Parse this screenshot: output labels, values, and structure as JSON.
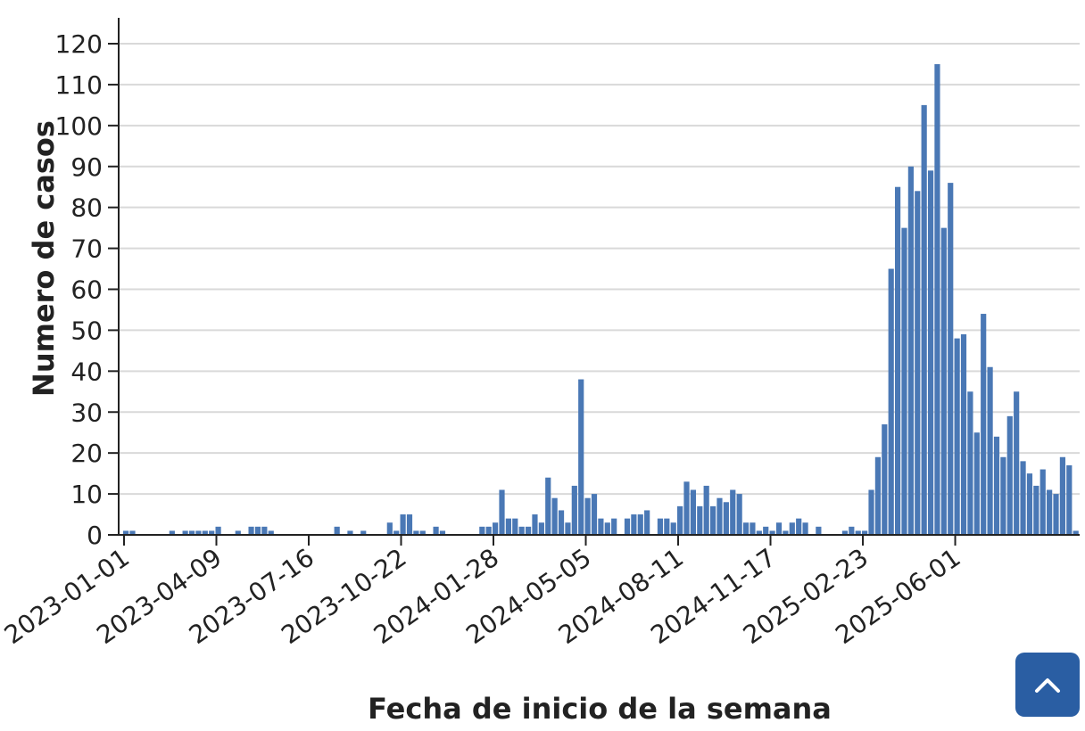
{
  "chart_data": {
    "type": "bar",
    "xlabel": "Fecha de inicio de la semana",
    "ylabel": "Numero de casos",
    "ylim": [
      0,
      120
    ],
    "yticks": [
      0,
      10,
      20,
      30,
      40,
      50,
      60,
      70,
      80,
      90,
      100,
      110,
      120
    ],
    "xticks": [
      "2023-01-01",
      "2023-04-09",
      "2023-07-16",
      "2023-10-22",
      "2024-01-28",
      "2024-05-05",
      "2024-08-11",
      "2024-11-17",
      "2025-02-23",
      "2025-06-01"
    ],
    "grid": true,
    "bar_color": "#4a78b5",
    "x_start": "2023-01-01",
    "x_interval": "weekly",
    "values": [
      1,
      1,
      0,
      0,
      0,
      0,
      0,
      1,
      0,
      1,
      1,
      1,
      1,
      1,
      2,
      0,
      0,
      1,
      0,
      2,
      2,
      2,
      1,
      0,
      0,
      0,
      0,
      0,
      0,
      0,
      0,
      0,
      2,
      0,
      1,
      0,
      1,
      0,
      0,
      0,
      3,
      1,
      5,
      5,
      1,
      1,
      0,
      2,
      1,
      0,
      0,
      0,
      0,
      0,
      2,
      2,
      3,
      11,
      4,
      4,
      2,
      2,
      5,
      3,
      14,
      9,
      6,
      3,
      12,
      38,
      9,
      10,
      4,
      3,
      4,
      0,
      4,
      5,
      5,
      6,
      0,
      4,
      4,
      3,
      7,
      13,
      11,
      7,
      12,
      7,
      9,
      8,
      11,
      10,
      3,
      3,
      1,
      2,
      1,
      3,
      1,
      3,
      4,
      3,
      0,
      2,
      0,
      0,
      0,
      1,
      2,
      1,
      1,
      11,
      19,
      27,
      65,
      85,
      75,
      90,
      84,
      105,
      89,
      115,
      75,
      86,
      48,
      49,
      35,
      25,
      54,
      41,
      24,
      19,
      29,
      35,
      18,
      15,
      12,
      16,
      11,
      10,
      19,
      17,
      1
    ]
  },
  "ui": {
    "back_to_top_icon": "chevron-up-icon",
    "back_to_top_color": "#2a5ea3"
  }
}
